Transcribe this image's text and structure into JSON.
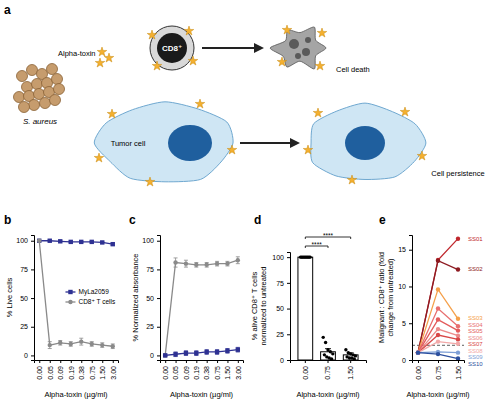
{
  "diagram": {
    "panel_label": "a",
    "toxin": "Alpha-toxin",
    "bacterium": "S. aureus",
    "t_cell": "CD8⁺",
    "t_cell_fate": "Cell death",
    "tumor": "Tumor cell",
    "tumor_fate": "Cell persistence"
  },
  "chart_data": [
    {
      "type": "line",
      "panel_label": "b",
      "x_label": "Alpha-toxin (µg/ml)",
      "y_label": "% Live cells",
      "categories": [
        "0.00",
        "0.05",
        "0.09",
        "0.19",
        "0.38",
        "0.75",
        "1.50",
        "3.00"
      ],
      "series": [
        {
          "name": "MyLa2059",
          "color": "#2e3192",
          "marker": "square",
          "values": [
            100,
            100,
            99.5,
            99,
            99,
            99,
            98.5,
            97
          ],
          "errors": [
            0,
            0.5,
            0.5,
            0.5,
            0.5,
            0.5,
            0.5,
            1
          ]
        },
        {
          "name": "CD8⁺ T cells",
          "color": "#8a8a8a",
          "marker": "circle",
          "values": [
            100,
            9,
            11,
            10,
            12,
            10,
            9,
            8
          ],
          "errors": [
            0,
            3,
            2,
            2,
            3,
            2,
            2,
            2
          ]
        }
      ],
      "ylim": [
        -4,
        105
      ],
      "yticks": [
        0,
        25,
        50,
        75,
        100
      ],
      "legend": "center right"
    },
    {
      "type": "line",
      "panel_label": "c",
      "x_label": "Alpha-toxin (µg/ml)",
      "y_label": "% Normalized absorbance",
      "categories": [
        "0.00",
        "0.05",
        "0.09",
        "0.19",
        "0.38",
        "0.75",
        "1.50",
        "3.00"
      ],
      "series": [
        {
          "color": "#8a8a8a",
          "marker": "circle",
          "values": [
            0,
            81,
            80,
            79,
            79,
            80,
            80,
            83
          ],
          "errors": [
            1,
            4,
            3,
            2,
            2,
            2,
            2,
            3
          ]
        },
        {
          "color": "#2e3192",
          "marker": "square",
          "values": [
            0,
            1,
            2,
            2,
            3,
            3,
            4,
            5
          ],
          "errors": [
            1,
            2,
            2,
            2,
            2,
            2,
            2,
            2
          ]
        }
      ],
      "ylim": [
        -4,
        105
      ],
      "yticks": [
        0,
        25,
        50,
        75,
        100
      ]
    },
    {
      "type": "bar",
      "panel_label": "d",
      "x_label": "Alpha-toxin (µg/ml)",
      "y_label": "% alive CD8⁺ T cells normalized to untreated",
      "categories": [
        "0.00",
        "0.75",
        "1.50"
      ],
      "values": [
        100,
        8,
        5
      ],
      "errors": [
        0,
        3,
        2
      ],
      "color": "#ffffff",
      "points": [
        [
          100,
          100,
          100,
          100,
          100,
          100,
          100,
          100,
          100
        ],
        [
          22,
          17,
          10,
          8,
          6,
          5,
          3,
          2,
          1
        ],
        [
          10,
          7,
          6,
          5,
          4,
          3,
          2,
          2,
          1
        ]
      ],
      "annotations": [
        "****",
        "****"
      ],
      "ylim": [
        0,
        105
      ],
      "yticks": [
        0,
        25,
        50,
        75,
        100
      ]
    },
    {
      "type": "line",
      "panel_label": "e",
      "x_label": "Alpha-toxin (µg/ml)",
      "y_label": "Malignant : CD8⁺ ratio (fold change from untreated)",
      "categories": [
        "0.00",
        "0.75",
        "1.50"
      ],
      "marker": "circle",
      "threshold": 2,
      "series": [
        {
          "name": "SS01",
          "color": "#c0272d",
          "values": [
            1,
            13.6,
            16.5
          ]
        },
        {
          "name": "SS02",
          "color": "#8e1b22",
          "values": [
            1,
            13.5,
            12.3
          ]
        },
        {
          "name": "SS03",
          "color": "#f5a04a",
          "values": [
            1,
            9.6,
            5.6
          ]
        },
        {
          "name": "SS04",
          "color": "#e86f6f",
          "values": [
            1,
            7,
            4.6
          ]
        },
        {
          "name": "SS05",
          "color": "#e35b5b",
          "values": [
            1,
            5.5,
            4
          ]
        },
        {
          "name": "SS06",
          "color": "#ec8b8b",
          "values": [
            1,
            4.2,
            3.3
          ]
        },
        {
          "name": "SS07",
          "color": "#d84747",
          "values": [
            1,
            3.4,
            2.8
          ]
        },
        {
          "name": "SS08",
          "color": "#f2a8a8",
          "values": [
            1,
            2.5,
            2.2
          ]
        },
        {
          "name": "SS09",
          "color": "#7e9fd6",
          "values": [
            1,
            1.1,
            1
          ]
        },
        {
          "name": "SS10",
          "color": "#2c4f9e",
          "values": [
            1,
            0.8,
            0.2
          ]
        }
      ],
      "ylim": [
        0,
        17
      ],
      "yticks": [
        0,
        5,
        10,
        15
      ]
    }
  ]
}
